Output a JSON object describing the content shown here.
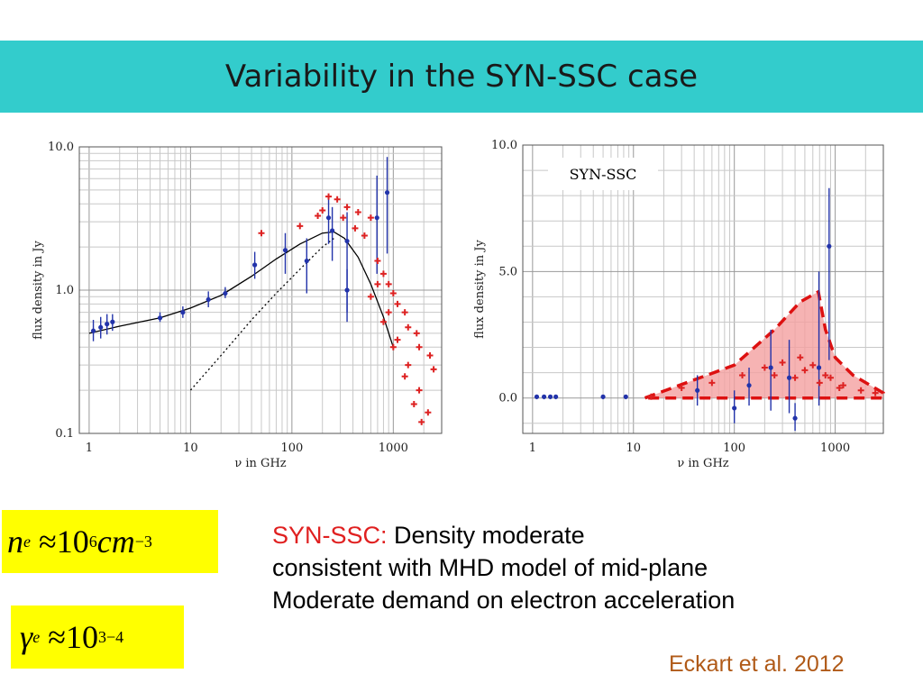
{
  "title": "Variability in the SYN-SSC case",
  "chart_data": [
    {
      "type": "scatter",
      "xlabel": "ν in GHz",
      "ylabel": "flux density in Jy",
      "xscale": "log",
      "yscale": "log",
      "xlim": [
        0.8,
        3000
      ],
      "ylim": [
        0.1,
        10
      ],
      "xticks": [
        1,
        10,
        100,
        1000
      ],
      "xtick_labels": [
        "1",
        "10",
        "100",
        "1000"
      ],
      "yticks": [
        0.1,
        1,
        10
      ],
      "ytick_labels": [
        "0.1",
        "1.0",
        "10.0"
      ],
      "grid": true,
      "series": [
        {
          "marker": "blue-errorbar",
          "color": "#2233aa",
          "points": [
            {
              "x": 1.1,
              "y": 0.52,
              "lo": 0.44,
              "hi": 0.62
            },
            {
              "x": 1.3,
              "y": 0.55,
              "lo": 0.46,
              "hi": 0.65
            },
            {
              "x": 1.5,
              "y": 0.58,
              "lo": 0.49,
              "hi": 0.68
            },
            {
              "x": 1.7,
              "y": 0.6,
              "lo": 0.52,
              "hi": 0.68
            },
            {
              "x": 5,
              "y": 0.64,
              "lo": 0.6,
              "hi": 0.7
            },
            {
              "x": 8.4,
              "y": 0.7,
              "lo": 0.64,
              "hi": 0.77
            },
            {
              "x": 15,
              "y": 0.86,
              "lo": 0.76,
              "hi": 0.98
            },
            {
              "x": 22,
              "y": 0.95,
              "lo": 0.88,
              "hi": 1.05
            },
            {
              "x": 43,
              "y": 1.5,
              "lo": 1.2,
              "hi": 1.85
            },
            {
              "x": 86,
              "y": 1.9,
              "lo": 1.3,
              "hi": 2.5
            },
            {
              "x": 140,
              "y": 1.6,
              "lo": 0.95,
              "hi": 2.3
            },
            {
              "x": 230,
              "y": 3.2,
              "lo": 2.1,
              "hi": 4.5
            },
            {
              "x": 250,
              "y": 2.6,
              "lo": 1.6,
              "hi": 3.8
            },
            {
              "x": 350,
              "y": 2.2,
              "lo": 0.7,
              "hi": 3.5
            },
            {
              "x": 350,
              "y": 1.0,
              "lo": 0.6,
              "hi": 1.4
            },
            {
              "x": 690,
              "y": 3.2,
              "lo": 1.3,
              "hi": 6.3
            },
            {
              "x": 870,
              "y": 4.8,
              "lo": 1.8,
              "hi": 8.5
            }
          ]
        },
        {
          "marker": "red-plus",
          "color": "#dd2222",
          "points": [
            {
              "x": 50,
              "y": 2.5
            },
            {
              "x": 120,
              "y": 2.8
            },
            {
              "x": 180,
              "y": 3.3
            },
            {
              "x": 230,
              "y": 4.5
            },
            {
              "x": 280,
              "y": 4.3
            },
            {
              "x": 350,
              "y": 3.8
            },
            {
              "x": 450,
              "y": 3.5
            },
            {
              "x": 600,
              "y": 3.2
            },
            {
              "x": 200,
              "y": 3.6
            },
            {
              "x": 320,
              "y": 3.2
            },
            {
              "x": 420,
              "y": 2.7
            },
            {
              "x": 520,
              "y": 2.4
            },
            {
              "x": 700,
              "y": 1.6
            },
            {
              "x": 900,
              "y": 1.1
            },
            {
              "x": 1100,
              "y": 0.8
            },
            {
              "x": 1400,
              "y": 0.55
            },
            {
              "x": 1800,
              "y": 0.4
            },
            {
              "x": 2500,
              "y": 0.28
            },
            {
              "x": 700,
              "y": 1.1
            },
            {
              "x": 900,
              "y": 0.7
            },
            {
              "x": 1100,
              "y": 0.45
            },
            {
              "x": 1400,
              "y": 0.3
            },
            {
              "x": 1800,
              "y": 0.2
            },
            {
              "x": 2200,
              "y": 0.14
            },
            {
              "x": 800,
              "y": 1.3
            },
            {
              "x": 1000,
              "y": 0.95
            },
            {
              "x": 1300,
              "y": 0.7
            },
            {
              "x": 1700,
              "y": 0.5
            },
            {
              "x": 2300,
              "y": 0.35
            },
            {
              "x": 600,
              "y": 0.9
            },
            {
              "x": 800,
              "y": 0.6
            },
            {
              "x": 1000,
              "y": 0.4
            },
            {
              "x": 1300,
              "y": 0.25
            },
            {
              "x": 1600,
              "y": 0.16
            },
            {
              "x": 1900,
              "y": 0.12
            }
          ]
        }
      ],
      "lines": [
        {
          "style": "solid",
          "color": "#000000",
          "points": [
            [
              1,
              0.5
            ],
            [
              2,
              0.56
            ],
            [
              5,
              0.64
            ],
            [
              10,
              0.75
            ],
            [
              20,
              0.92
            ],
            [
              40,
              1.25
            ],
            [
              70,
              1.65
            ],
            [
              120,
              2.1
            ],
            [
              200,
              2.5
            ],
            [
              260,
              2.55
            ],
            [
              330,
              2.3
            ],
            [
              450,
              1.7
            ],
            [
              600,
              1.1
            ],
            [
              800,
              0.65
            ],
            [
              1000,
              0.4
            ]
          ]
        },
        {
          "style": "dotted",
          "color": "#000000",
          "points": [
            [
              10,
              0.2
            ],
            [
              20,
              0.35
            ],
            [
              40,
              0.62
            ],
            [
              70,
              0.95
            ],
            [
              120,
              1.4
            ],
            [
              200,
              2.0
            ],
            [
              260,
              2.3
            ]
          ]
        }
      ]
    },
    {
      "type": "scatter",
      "xlabel": "ν in GHz",
      "ylabel": "flux density in Jy",
      "xscale": "log",
      "yscale": "linear",
      "xlim": [
        0.8,
        3000
      ],
      "ylim": [
        -1.4,
        10
      ],
      "xticks": [
        1,
        10,
        100,
        1000
      ],
      "xtick_labels": [
        "1",
        "10",
        "100",
        "1000"
      ],
      "yticks": [
        0,
        5,
        10
      ],
      "ytick_labels": [
        "0.0",
        "5.0",
        "10.0"
      ],
      "grid": true,
      "annotation": "SYN-SSC",
      "series": [
        {
          "marker": "blue-errorbar",
          "color": "#2233aa",
          "points": [
            {
              "x": 1.1,
              "y": 0.05,
              "lo": -0.05,
              "hi": 0.1
            },
            {
              "x": 1.3,
              "y": 0.05,
              "lo": -0.05,
              "hi": 0.1
            },
            {
              "x": 1.5,
              "y": 0.05,
              "lo": -0.05,
              "hi": 0.1
            },
            {
              "x": 1.7,
              "y": 0.05,
              "lo": -0.05,
              "hi": 0.1
            },
            {
              "x": 5,
              "y": 0.05,
              "lo": -0.05,
              "hi": 0.1
            },
            {
              "x": 8.4,
              "y": 0.05,
              "lo": -0.05,
              "hi": 0.1
            },
            {
              "x": 43,
              "y": 0.3,
              "lo": -0.3,
              "hi": 0.9
            },
            {
              "x": 100,
              "y": -0.4,
              "lo": -1.0,
              "hi": 0.3
            },
            {
              "x": 140,
              "y": 0.5,
              "lo": -0.3,
              "hi": 1.2
            },
            {
              "x": 230,
              "y": 1.2,
              "lo": -0.5,
              "hi": 2.7
            },
            {
              "x": 350,
              "y": 0.8,
              "lo": -0.6,
              "hi": 2.3
            },
            {
              "x": 400,
              "y": -0.8,
              "lo": -1.3,
              "hi": -0.2
            },
            {
              "x": 690,
              "y": 1.2,
              "lo": -0.3,
              "hi": 5.0
            },
            {
              "x": 870,
              "y": 6.0,
              "lo": 1.5,
              "hi": 8.3
            }
          ]
        },
        {
          "marker": "red-plus",
          "color": "#dd2222",
          "points": [
            {
              "x": 15,
              "y": 0.05
            },
            {
              "x": 30,
              "y": 0.4
            },
            {
              "x": 60,
              "y": 0.6
            },
            {
              "x": 120,
              "y": 0.9
            },
            {
              "x": 200,
              "y": 1.2
            },
            {
              "x": 300,
              "y": 1.4
            },
            {
              "x": 450,
              "y": 1.6
            },
            {
              "x": 600,
              "y": 1.3
            },
            {
              "x": 800,
              "y": 0.9
            },
            {
              "x": 1200,
              "y": 0.5
            },
            {
              "x": 1800,
              "y": 0.3
            },
            {
              "x": 2500,
              "y": 0.2
            },
            {
              "x": 250,
              "y": 0.9
            },
            {
              "x": 400,
              "y": 0.8
            },
            {
              "x": 700,
              "y": 0.6
            },
            {
              "x": 1100,
              "y": 0.4
            },
            {
              "x": 500,
              "y": 1.1
            },
            {
              "x": 900,
              "y": 0.8
            }
          ]
        }
      ],
      "region": {
        "fill": "#f4a0a0",
        "stroke": "#dd1111",
        "points": [
          [
            13,
            0
          ],
          [
            100,
            1.3
          ],
          [
            250,
            2.7
          ],
          [
            450,
            3.8
          ],
          [
            680,
            4.2
          ],
          [
            800,
            2.7
          ],
          [
            1000,
            1.6
          ],
          [
            1500,
            0.9
          ],
          [
            3000,
            0.2
          ],
          [
            3000,
            0
          ],
          [
            13,
            0
          ]
        ]
      }
    }
  ],
  "formulas": {
    "ne": {
      "base": "n",
      "sub": "e",
      "approx": "≈",
      "value": "10",
      "exp": "6",
      "unit": "cm",
      "unit_exp": "−3"
    },
    "ge": {
      "base": "γ",
      "sub": "e",
      "approx": "≈",
      "value": "10",
      "exp": "3−4"
    }
  },
  "description": {
    "label": "SYN-SSC:",
    "line1": "Density moderate",
    "line2": "consistent with MHD model of mid-plane",
    "line3": "Moderate demand on electron acceleration"
  },
  "citation": "Eckart et al. 2012"
}
